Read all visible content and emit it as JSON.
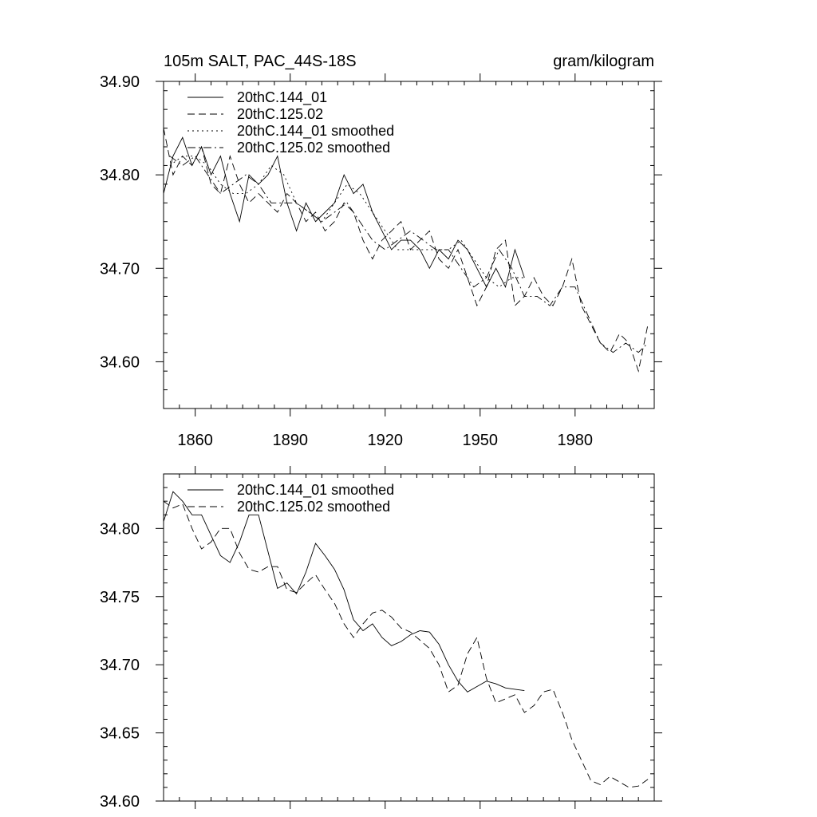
{
  "chart_data": [
    {
      "type": "line",
      "title_left": "105m SALT, PAC_44S-18S",
      "title_right": "gram/kilogram",
      "xlabel": "",
      "ylabel": "",
      "xlim": [
        1850,
        2005
      ],
      "ylim": [
        34.55,
        34.9
      ],
      "x_ticks": [
        1860,
        1890,
        1920,
        1950,
        1980
      ],
      "x_tick_labels": [
        "1860",
        "1890",
        "1920",
        "1950",
        "1980"
      ],
      "y_ticks": [
        34.6,
        34.7,
        34.8,
        34.9
      ],
      "y_tick_labels": [
        "34.60",
        "34.70",
        "34.80",
        "34.90"
      ],
      "legend_position": "top-left",
      "series": [
        {
          "name": "20thC.144_01",
          "style": "solid",
          "x": [
            1850,
            1853,
            1856,
            1859,
            1862,
            1865,
            1868,
            1871,
            1874,
            1877,
            1880,
            1883,
            1886,
            1889,
            1892,
            1895,
            1898,
            1901,
            1904,
            1907,
            1910,
            1913,
            1916,
            1919,
            1922,
            1925,
            1928,
            1931,
            1934,
            1937,
            1940,
            1943,
            1946,
            1949,
            1952,
            1955,
            1958,
            1961,
            1964
          ],
          "values": [
            34.78,
            34.82,
            34.84,
            34.81,
            34.83,
            34.8,
            34.82,
            34.78,
            34.75,
            34.8,
            34.79,
            34.8,
            34.82,
            34.77,
            34.74,
            34.77,
            34.75,
            34.76,
            34.77,
            34.8,
            34.78,
            34.79,
            34.76,
            34.74,
            34.72,
            34.73,
            34.73,
            34.72,
            34.7,
            34.72,
            34.71,
            34.73,
            34.72,
            34.7,
            34.68,
            34.7,
            34.68,
            34.72,
            34.69
          ]
        },
        {
          "name": "20thC.125.02",
          "style": "dashed",
          "x": [
            1850,
            1853,
            1856,
            1859,
            1862,
            1865,
            1868,
            1871,
            1874,
            1877,
            1880,
            1883,
            1886,
            1889,
            1892,
            1895,
            1898,
            1901,
            1904,
            1907,
            1910,
            1913,
            1916,
            1919,
            1922,
            1925,
            1928,
            1931,
            1934,
            1937,
            1940,
            1943,
            1946,
            1949,
            1952,
            1955,
            1958,
            1961,
            1964,
            1967,
            1970,
            1973,
            1976,
            1979,
            1982,
            1985,
            1988,
            1991,
            1994,
            1997,
            2000,
            2003
          ],
          "values": [
            34.85,
            34.8,
            34.82,
            34.81,
            34.83,
            34.79,
            34.78,
            34.82,
            34.79,
            34.77,
            34.78,
            34.77,
            34.76,
            34.78,
            34.77,
            34.75,
            34.76,
            34.74,
            34.75,
            34.77,
            34.76,
            34.73,
            34.71,
            34.73,
            34.74,
            34.75,
            34.72,
            34.73,
            34.74,
            34.71,
            34.7,
            34.72,
            34.69,
            34.66,
            34.68,
            34.72,
            34.73,
            34.66,
            34.67,
            34.69,
            34.67,
            34.66,
            34.68,
            34.71,
            34.66,
            34.64,
            34.62,
            34.61,
            34.63,
            34.62,
            34.59,
            34.64
          ]
        },
        {
          "name": "20thC.144_01 smoothed",
          "style": "dotted",
          "x": [
            1852,
            1856,
            1860,
            1864,
            1868,
            1872,
            1876,
            1880,
            1884,
            1888,
            1892,
            1896,
            1900,
            1904,
            1908,
            1912,
            1916,
            1920,
            1924,
            1928,
            1932,
            1936,
            1940,
            1944,
            1948,
            1952,
            1956,
            1960,
            1964
          ],
          "values": [
            34.81,
            34.82,
            34.82,
            34.81,
            34.79,
            34.78,
            34.78,
            34.79,
            34.81,
            34.8,
            34.77,
            34.76,
            34.75,
            34.77,
            34.79,
            34.78,
            34.76,
            34.74,
            34.72,
            34.72,
            34.72,
            34.72,
            34.72,
            34.73,
            34.71,
            34.69,
            34.68,
            34.69,
            34.69
          ]
        },
        {
          "name": "20thC.125.02 smoothed",
          "style": "dashdot",
          "x": [
            1852,
            1856,
            1860,
            1864,
            1868,
            1872,
            1876,
            1880,
            1884,
            1888,
            1892,
            1896,
            1900,
            1904,
            1908,
            1912,
            1916,
            1920,
            1924,
            1928,
            1932,
            1936,
            1940,
            1944,
            1948,
            1952,
            1956,
            1960,
            1964,
            1968,
            1972,
            1976,
            1980,
            1984,
            1988,
            1992,
            1996,
            2000,
            2003
          ],
          "values": [
            34.82,
            34.81,
            34.82,
            34.8,
            34.78,
            34.79,
            34.8,
            34.79,
            34.77,
            34.77,
            34.77,
            34.76,
            34.75,
            34.76,
            34.77,
            34.75,
            34.73,
            34.72,
            34.73,
            34.74,
            34.73,
            34.72,
            34.72,
            34.7,
            34.68,
            34.69,
            34.72,
            34.7,
            34.67,
            34.67,
            34.66,
            34.68,
            34.68,
            34.65,
            34.62,
            34.61,
            34.62,
            34.61,
            34.62
          ]
        }
      ]
    },
    {
      "type": "line",
      "xlim": [
        1850,
        2005
      ],
      "ylim": [
        34.6,
        34.84
      ],
      "x_ticks": [
        1860,
        1890,
        1920,
        1950,
        1980
      ],
      "y_ticks": [
        34.6,
        34.65,
        34.7,
        34.75,
        34.8
      ],
      "y_tick_labels": [
        "34.60",
        "34.65",
        "34.70",
        "34.75",
        "34.80"
      ],
      "legend_position": "top-left",
      "series": [
        {
          "name": "20thC.144_01 smoothed",
          "style": "solid",
          "x": [
            1850,
            1853,
            1856,
            1859,
            1862,
            1865,
            1868,
            1871,
            1874,
            1877,
            1880,
            1883,
            1886,
            1889,
            1892,
            1895,
            1898,
            1901,
            1904,
            1907,
            1910,
            1913,
            1916,
            1919,
            1922,
            1925,
            1928,
            1931,
            1934,
            1937,
            1940,
            1943,
            1946,
            1949,
            1952,
            1955,
            1958,
            1961,
            1964
          ],
          "values": [
            34.805,
            34.827,
            34.82,
            34.81,
            34.81,
            34.795,
            34.78,
            34.775,
            34.79,
            34.81,
            34.81,
            34.783,
            34.756,
            34.76,
            34.752,
            34.768,
            34.789,
            34.78,
            34.77,
            34.755,
            34.733,
            34.725,
            34.73,
            34.72,
            34.714,
            34.717,
            34.722,
            34.725,
            34.724,
            34.715,
            34.7,
            34.688,
            34.68,
            34.684,
            34.688,
            34.686,
            34.683,
            34.682,
            34.681
          ]
        },
        {
          "name": "20thC.125.02 smoothed",
          "style": "dashed",
          "x": [
            1850,
            1853,
            1856,
            1859,
            1862,
            1865,
            1868,
            1871,
            1874,
            1877,
            1880,
            1883,
            1886,
            1889,
            1892,
            1895,
            1898,
            1901,
            1904,
            1907,
            1910,
            1913,
            1916,
            1919,
            1922,
            1925,
            1928,
            1931,
            1934,
            1937,
            1940,
            1943,
            1946,
            1949,
            1952,
            1955,
            1958,
            1961,
            1964,
            1967,
            1970,
            1973,
            1976,
            1979,
            1982,
            1985,
            1988,
            1991,
            1994,
            1997,
            2000,
            2003
          ],
          "values": [
            34.82,
            34.815,
            34.818,
            34.8,
            34.785,
            34.79,
            34.8,
            34.8,
            34.782,
            34.77,
            34.768,
            34.772,
            34.772,
            34.755,
            34.753,
            34.76,
            34.766,
            34.755,
            34.745,
            34.73,
            34.72,
            34.73,
            34.738,
            34.74,
            34.735,
            34.727,
            34.724,
            34.718,
            34.712,
            34.7,
            34.68,
            34.685,
            34.708,
            34.72,
            34.69,
            34.672,
            34.675,
            34.678,
            34.665,
            34.67,
            34.68,
            34.682,
            34.665,
            34.645,
            34.63,
            34.615,
            34.612,
            34.618,
            34.614,
            34.61,
            34.611,
            34.616
          ]
        }
      ]
    }
  ]
}
